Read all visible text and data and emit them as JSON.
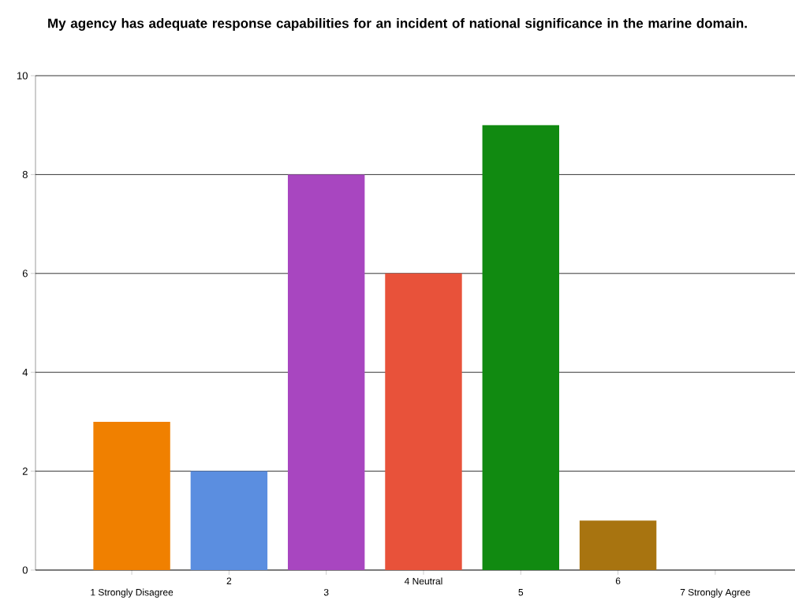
{
  "chart_data": {
    "type": "bar",
    "title": "My agency has adequate response capabilities for an incident of national significance in the marine domain.",
    "categories": [
      "1 Strongly Disagree",
      "2",
      "3",
      "4 Neutral",
      "5",
      "6",
      "7 Strongly Agree"
    ],
    "values": [
      3,
      2,
      8,
      6,
      9,
      1,
      0
    ],
    "colors": [
      "#f08000",
      "#5b8ee0",
      "#a846c0",
      "#e8523a",
      "#118a11",
      "#a87410",
      "#808080"
    ],
    "ylim": [
      0,
      10
    ],
    "yticks": [
      0,
      2,
      4,
      6,
      8,
      10
    ],
    "grid": "y"
  }
}
